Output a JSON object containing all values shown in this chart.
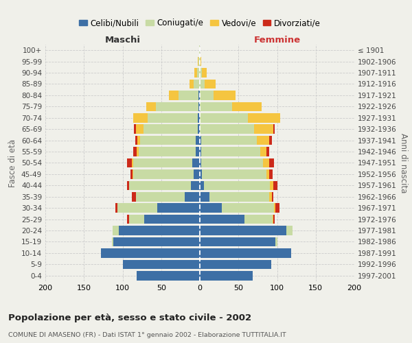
{
  "age_groups": [
    "100+",
    "95-99",
    "90-94",
    "85-89",
    "80-84",
    "75-79",
    "70-74",
    "65-69",
    "60-64",
    "55-59",
    "50-54",
    "45-49",
    "40-44",
    "35-39",
    "30-34",
    "25-29",
    "20-24",
    "15-19",
    "10-14",
    "5-9",
    "0-4"
  ],
  "birth_years": [
    "≤ 1901",
    "1902-1906",
    "1907-1911",
    "1912-1916",
    "1917-1921",
    "1922-1926",
    "1927-1931",
    "1932-1936",
    "1937-1941",
    "1942-1946",
    "1947-1951",
    "1952-1956",
    "1957-1961",
    "1962-1966",
    "1967-1971",
    "1972-1976",
    "1977-1981",
    "1982-1986",
    "1987-1991",
    "1992-1996",
    "1997-2001"
  ],
  "male_celibi": [
    0,
    0,
    0,
    0,
    2,
    2,
    3,
    3,
    5,
    5,
    10,
    8,
    12,
    20,
    55,
    72,
    105,
    112,
    128,
    100,
    82
  ],
  "male_coniugati": [
    1,
    2,
    4,
    8,
    26,
    55,
    65,
    70,
    72,
    74,
    76,
    78,
    80,
    63,
    52,
    20,
    8,
    2,
    0,
    0,
    0
  ],
  "male_vedovi": [
    0,
    1,
    3,
    5,
    12,
    12,
    18,
    10,
    4,
    3,
    2,
    1,
    0,
    0,
    0,
    0,
    0,
    0,
    0,
    0,
    0
  ],
  "male_divorziati": [
    0,
    0,
    0,
    0,
    0,
    0,
    0,
    2,
    3,
    4,
    6,
    3,
    2,
    5,
    2,
    2,
    0,
    0,
    0,
    0,
    0
  ],
  "fem_nubili": [
    0,
    0,
    0,
    0,
    0,
    0,
    0,
    0,
    2,
    2,
    2,
    3,
    5,
    12,
    28,
    58,
    112,
    98,
    118,
    92,
    68
  ],
  "fem_coniugate": [
    0,
    1,
    3,
    6,
    18,
    42,
    62,
    70,
    72,
    76,
    80,
    83,
    86,
    78,
    68,
    36,
    8,
    2,
    0,
    0,
    0
  ],
  "fem_vedove": [
    0,
    1,
    6,
    14,
    28,
    38,
    42,
    25,
    16,
    8,
    8,
    4,
    4,
    3,
    2,
    1,
    0,
    0,
    0,
    0,
    0
  ],
  "fem_divorziate": [
    0,
    0,
    0,
    0,
    0,
    0,
    0,
    2,
    3,
    4,
    6,
    4,
    5,
    2,
    5,
    2,
    0,
    0,
    0,
    0,
    0
  ],
  "color_celibi": "#3d6fa5",
  "color_coniugati": "#c8dba4",
  "color_vedovi": "#f5c540",
  "color_divorziati": "#cc2a1a",
  "xlim": 200,
  "title": "Popolazione per età, sesso e stato civile - 2002",
  "subtitle": "COMUNE DI AMASENO (FR) - Dati ISTAT 1° gennaio 2002 - Elaborazione TUTTITALIA.IT",
  "ylabel": "Fasce di età",
  "right_ylabel": "Anni di nascita",
  "legend_labels": [
    "Celibi/Nubili",
    "Coniugati/e",
    "Vedovi/e",
    "Divorziati/e"
  ],
  "bg_color": "#f0f0ea",
  "maschi_label": "Maschi",
  "femmine_label": "Femmine",
  "maschi_color": "#333333",
  "femmine_color": "#cc3333"
}
